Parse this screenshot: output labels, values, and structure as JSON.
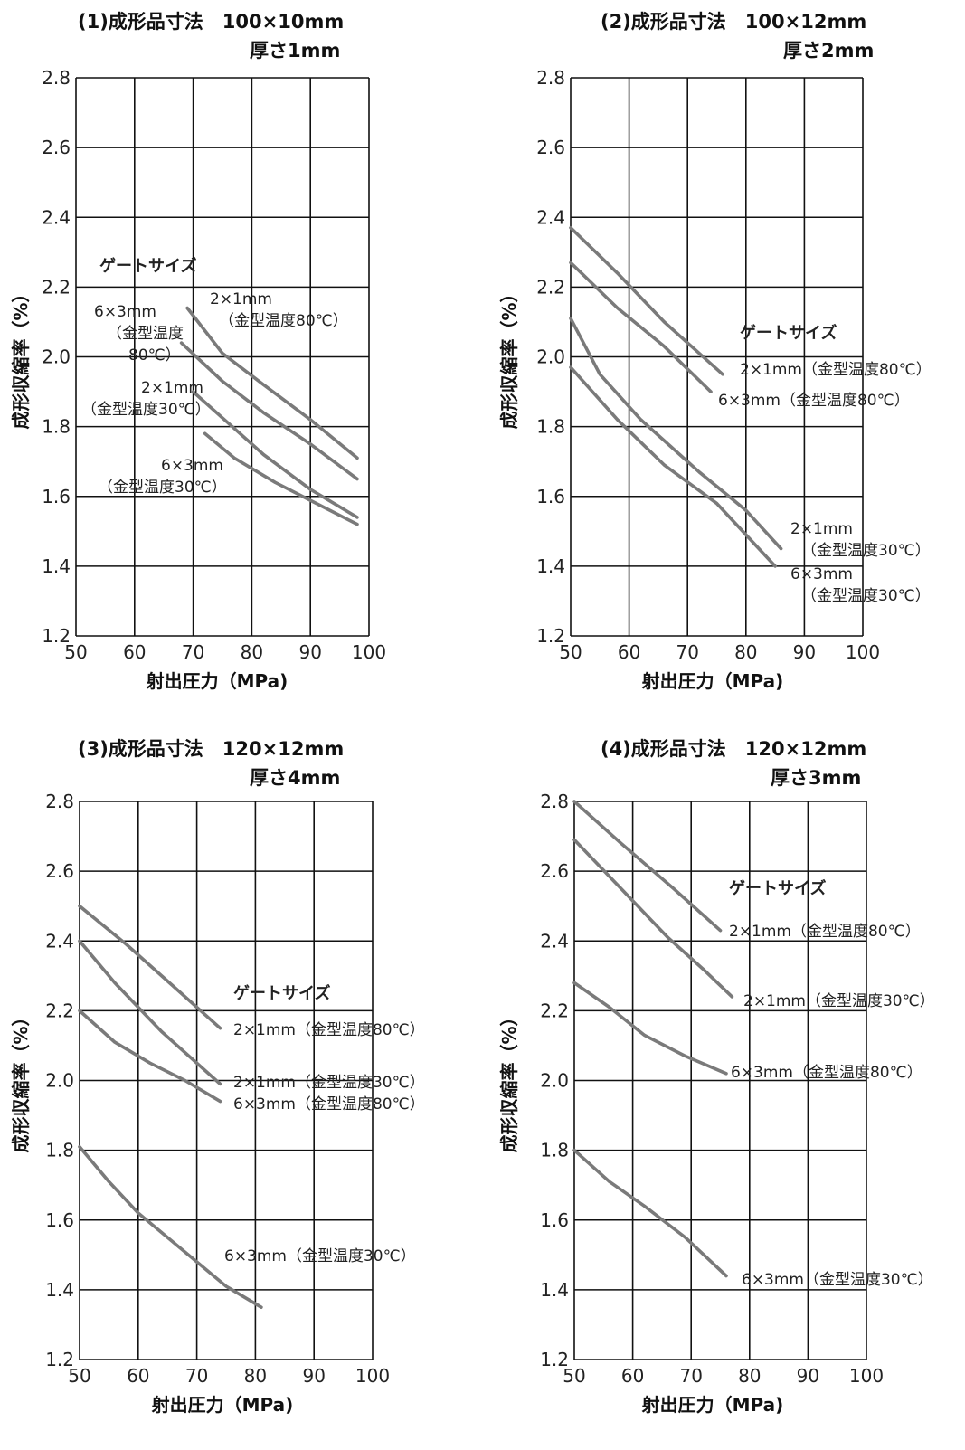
{
  "chart_data": [
    {
      "type": "line",
      "title": "(1)成形品寸法　100×10mm",
      "subtitle": "厚さ1mm",
      "xlabel": "射出圧力（MPa)",
      "ylabel": "成形収縮率（%）",
      "xlim": [
        50,
        100
      ],
      "ylim": [
        1.2,
        2.8
      ],
      "xticks": [
        "50",
        "60",
        "70",
        "80",
        "90",
        "100"
      ],
      "yticks": [
        "1.2",
        "1.4",
        "1.6",
        "1.8",
        "2.0",
        "2.2",
        "2.4",
        "2.6",
        "2.8"
      ],
      "grid": true,
      "legend_title": "ゲートサイズ",
      "series": [
        {
          "name": "2×1mm（金型温度80℃）",
          "x": [
            69,
            75,
            82,
            90,
            98
          ],
          "y": [
            2.14,
            2.01,
            1.92,
            1.82,
            1.71
          ]
        },
        {
          "name": "6×3mm（金型温度80℃）",
          "x": [
            68,
            75,
            82,
            90,
            98
          ],
          "y": [
            2.04,
            1.93,
            1.84,
            1.75,
            1.65
          ]
        },
        {
          "name": "2×1mm（金型温度30℃）",
          "x": [
            70,
            76,
            82,
            90,
            98
          ],
          "y": [
            1.9,
            1.81,
            1.72,
            1.62,
            1.54
          ]
        },
        {
          "name": "6×3mm（金型温度30℃）",
          "x": [
            72,
            77,
            84,
            91,
            98
          ],
          "y": [
            1.78,
            1.71,
            1.64,
            1.58,
            1.52
          ]
        }
      ]
    },
    {
      "type": "line",
      "title": "(2)成形品寸法　100×12mm",
      "subtitle": "厚さ2mm",
      "xlabel": "射出圧力（MPa)",
      "ylabel": "成形収縮率（%）",
      "xlim": [
        50,
        100
      ],
      "ylim": [
        1.2,
        2.8
      ],
      "xticks": [
        "50",
        "60",
        "70",
        "80",
        "90",
        "100"
      ],
      "yticks": [
        "1.2",
        "1.4",
        "1.6",
        "1.8",
        "2.0",
        "2.2",
        "2.4",
        "2.6",
        "2.8"
      ],
      "grid": true,
      "legend_title": "ゲートサイズ",
      "series": [
        {
          "name": "2×1mm（金型温度80℃）",
          "x": [
            50,
            58,
            66,
            76
          ],
          "y": [
            2.37,
            2.24,
            2.1,
            1.95
          ]
        },
        {
          "name": "6×3mm（金型温度80℃）",
          "x": [
            50,
            58,
            66,
            74
          ],
          "y": [
            2.27,
            2.14,
            2.03,
            1.9
          ]
        },
        {
          "name": "2×1mm（金型温度30℃）",
          "x": [
            50,
            55,
            62,
            72,
            80,
            86
          ],
          "y": [
            2.11,
            1.95,
            1.82,
            1.67,
            1.56,
            1.45
          ]
        },
        {
          "name": "6×3mm（金型温度30℃）",
          "x": [
            50,
            58,
            66,
            75,
            85
          ],
          "y": [
            1.97,
            1.82,
            1.69,
            1.58,
            1.4
          ]
        }
      ]
    },
    {
      "type": "line",
      "title": "(3)成形品寸法　120×12mm",
      "subtitle": "厚さ4mm",
      "xlabel": "射出圧力（MPa)",
      "ylabel": "成形収縮率（%）",
      "xlim": [
        50,
        100
      ],
      "ylim": [
        1.2,
        2.8
      ],
      "xticks": [
        "50",
        "60",
        "70",
        "80",
        "90",
        "100"
      ],
      "yticks": [
        "1.2",
        "1.4",
        "1.6",
        "1.8",
        "2.0",
        "2.2",
        "2.4",
        "2.6",
        "2.8"
      ],
      "grid": true,
      "legend_title": "ゲートサイズ",
      "series": [
        {
          "name": "2×1mm（金型温度80℃）",
          "x": [
            50,
            58,
            66,
            74
          ],
          "y": [
            2.5,
            2.39,
            2.27,
            2.15
          ]
        },
        {
          "name": "2×1mm（金型温度30℃）",
          "x": [
            50,
            56,
            64,
            74
          ],
          "y": [
            2.4,
            2.28,
            2.14,
            1.99
          ]
        },
        {
          "name": "6×3mm（金型温度80℃）",
          "x": [
            50,
            56,
            62,
            68,
            74
          ],
          "y": [
            2.2,
            2.11,
            2.05,
            2.0,
            1.94
          ]
        },
        {
          "name": "6×3mm（金型温度30℃）",
          "x": [
            50,
            55,
            60,
            65,
            70,
            75,
            81
          ],
          "y": [
            1.81,
            1.71,
            1.62,
            1.55,
            1.48,
            1.41,
            1.35
          ]
        }
      ]
    },
    {
      "type": "line",
      "title": "(4)成形品寸法　120×12mm",
      "subtitle": "厚さ3mm",
      "xlabel": "射出圧力（MPa)",
      "ylabel": "成形収縮率（%）",
      "xlim": [
        50,
        100
      ],
      "ylim": [
        1.2,
        2.8
      ],
      "xticks": [
        "50",
        "60",
        "70",
        "80",
        "90",
        "100"
      ],
      "yticks": [
        "1.2",
        "1.4",
        "1.6",
        "1.8",
        "2.0",
        "2.2",
        "2.4",
        "2.6",
        "2.8"
      ],
      "grid": true,
      "legend_title": "ゲートサイズ",
      "series": [
        {
          "name": "2×1mm（金型温度80℃）",
          "x": [
            50,
            58,
            67,
            75
          ],
          "y": [
            2.8,
            2.68,
            2.55,
            2.43
          ]
        },
        {
          "name": "2×1mm（金型温度30℃）",
          "x": [
            50,
            58,
            66,
            72,
            77
          ],
          "y": [
            2.69,
            2.55,
            2.41,
            2.32,
            2.24
          ]
        },
        {
          "name": "6×3mm（金型温度80℃）",
          "x": [
            50,
            56,
            62,
            69,
            76
          ],
          "y": [
            2.28,
            2.21,
            2.13,
            2.07,
            2.02
          ]
        },
        {
          "name": "6×3mm（金型温度30℃）",
          "x": [
            50,
            56,
            62,
            69,
            76
          ],
          "y": [
            1.8,
            1.71,
            1.64,
            1.55,
            1.44
          ]
        }
      ]
    }
  ],
  "line_color": "#7a7a7a"
}
